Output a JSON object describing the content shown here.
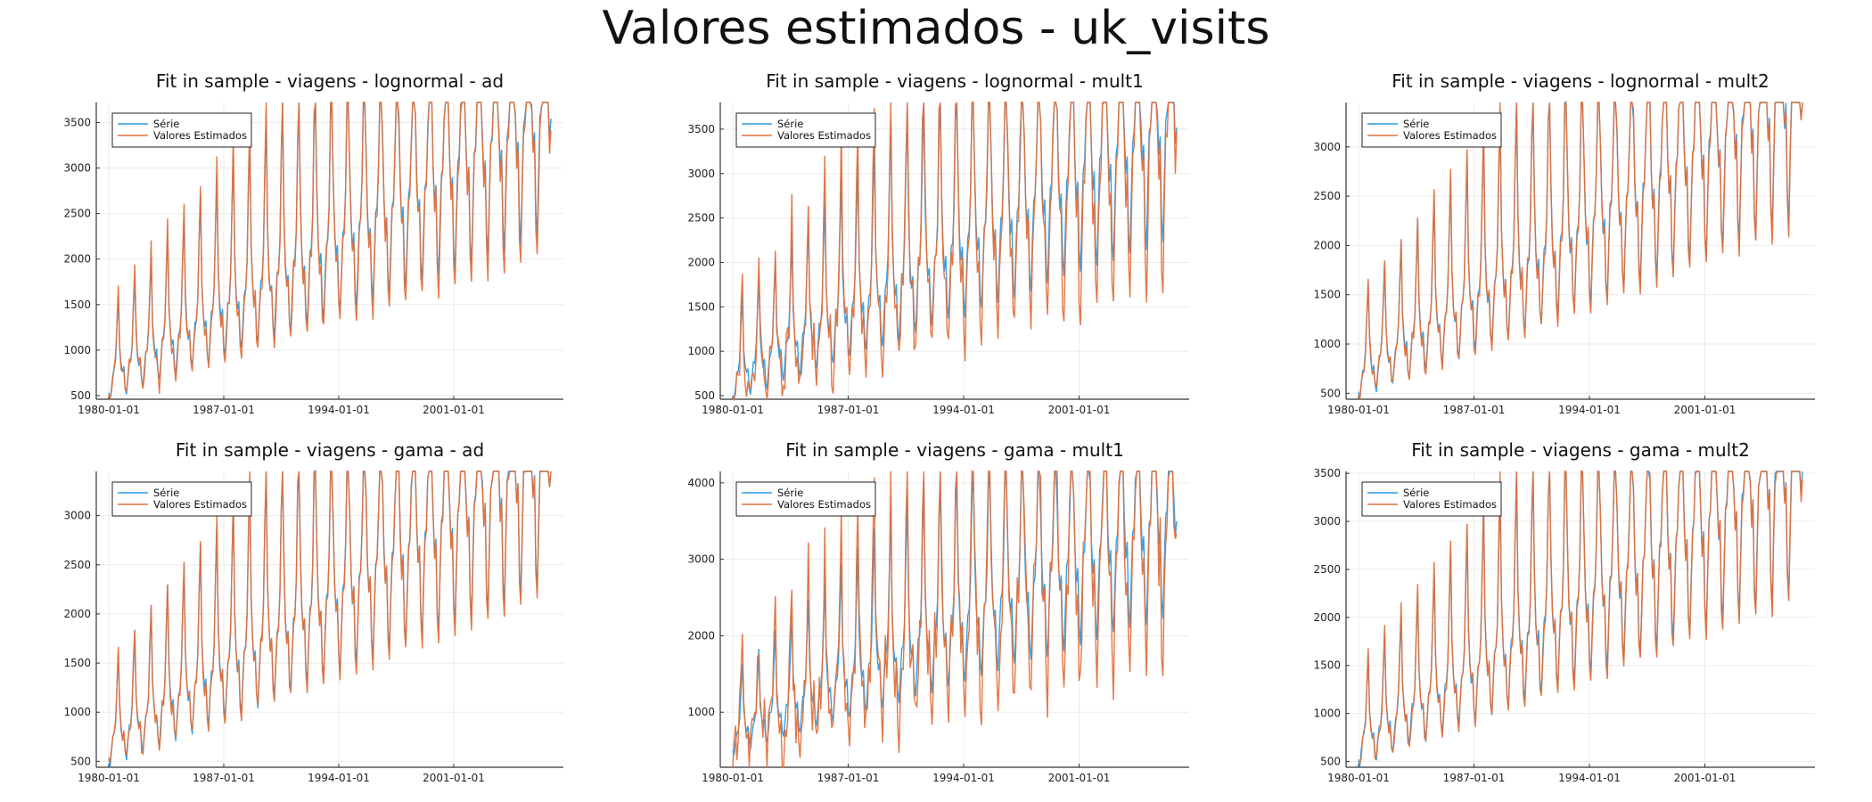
{
  "figure": {
    "title": "Valores estimados - uk_visits"
  },
  "colors": {
    "serie": "#2A9AE0",
    "estimados": "#E1703B",
    "grid": "#ebebeb",
    "axis": "#333333"
  },
  "legend": {
    "position": "top-left",
    "entries": [
      "Série",
      "Valores Estimados"
    ]
  },
  "chart_data": [
    {
      "type": "line",
      "title": "Fit in sample - viagens - lognormal - ad",
      "x_start": "1980-01",
      "x_end": "2006-12",
      "x_ticks": [
        "1980-01-01",
        "1987-01-01",
        "1994-01-01",
        "2001-01-01"
      ],
      "ylim": [
        460,
        3720
      ],
      "y_ticks": [
        500,
        1000,
        1500,
        2000,
        2500,
        3000,
        3500
      ],
      "series": [
        {
          "name": "Série",
          "key": "base",
          "trend": 19.8,
          "amp": 1.0,
          "noise": 30,
          "seed": 11
        },
        {
          "name": "Valores Estimados",
          "key": "fit",
          "trend": 19.8,
          "amp": 1.12,
          "noise": 80,
          "seed": 12
        }
      ],
      "grid": true
    },
    {
      "type": "line",
      "title": "Fit in sample - viagens - lognormal - mult1",
      "x_start": "1980-01",
      "x_end": "2006-12",
      "x_ticks": [
        "1980-01-01",
        "1987-01-01",
        "1994-01-01",
        "2001-01-01"
      ],
      "ylim": [
        460,
        3800
      ],
      "y_ticks": [
        500,
        1000,
        1500,
        2000,
        2500,
        3000,
        3500
      ],
      "series": [
        {
          "name": "Série",
          "key": "base",
          "trend": 19.8,
          "amp": 1.0,
          "noise": 30,
          "seed": 21
        },
        {
          "name": "Valores Estimados",
          "key": "fit",
          "trend": 19.8,
          "amp": 1.3,
          "noise": 200,
          "seed": 22
        }
      ],
      "grid": true
    },
    {
      "type": "line",
      "title": "Fit in sample - viagens - lognormal - mult2",
      "x_start": "1980-01",
      "x_end": "2006-12",
      "x_ticks": [
        "1980-01-01",
        "1987-01-01",
        "1994-01-01",
        "2001-01-01"
      ],
      "ylim": [
        440,
        3450
      ],
      "y_ticks": [
        500,
        1000,
        1500,
        2000,
        2500,
        3000
      ],
      "series": [
        {
          "name": "Série",
          "key": "base",
          "trend": 19.8,
          "amp": 1.0,
          "noise": 30,
          "seed": 31
        },
        {
          "name": "Valores Estimados",
          "key": "fit",
          "trend": 19.8,
          "amp": 1.05,
          "noise": 60,
          "seed": 32
        }
      ],
      "grid": true
    },
    {
      "type": "line",
      "title": "Fit in sample - viagens - gama - ad",
      "x_start": "1980-01",
      "x_end": "2006-12",
      "x_ticks": [
        "1980-01-01",
        "1987-01-01",
        "1994-01-01",
        "2001-01-01"
      ],
      "ylim": [
        440,
        3450
      ],
      "y_ticks": [
        500,
        1000,
        1500,
        2000,
        2500,
        3000
      ],
      "series": [
        {
          "name": "Série",
          "key": "base",
          "trend": 19.8,
          "amp": 1.0,
          "noise": 30,
          "seed": 41
        },
        {
          "name": "Valores Estimados",
          "key": "fit",
          "trend": 19.8,
          "amp": 1.05,
          "noise": 60,
          "seed": 42
        }
      ],
      "grid": true
    },
    {
      "type": "line",
      "title": "Fit in sample - viagens - gama - mult1",
      "x_start": "1980-01",
      "x_end": "2006-12",
      "x_ticks": [
        "1980-01-01",
        "1987-01-01",
        "1994-01-01",
        "2001-01-01"
      ],
      "ylim": [
        280,
        4150
      ],
      "y_ticks": [
        1000,
        2000,
        3000,
        4000
      ],
      "series": [
        {
          "name": "Série",
          "key": "base",
          "trend": 19.8,
          "amp": 1.0,
          "noise": 30,
          "seed": 51
        },
        {
          "name": "Valores Estimados",
          "key": "fit",
          "trend": 19.8,
          "amp": 1.35,
          "noise": 360,
          "seed": 52
        }
      ],
      "grid": true
    },
    {
      "type": "line",
      "title": "Fit in sample - viagens - gama - mult2",
      "x_start": "1980-01",
      "x_end": "2006-12",
      "x_ticks": [
        "1980-01-01",
        "1987-01-01",
        "1994-01-01",
        "2001-01-01"
      ],
      "ylim": [
        440,
        3520
      ],
      "y_ticks": [
        500,
        1000,
        1500,
        2000,
        2500,
        3000,
        3500
      ],
      "series": [
        {
          "name": "Série",
          "key": "base",
          "trend": 19.8,
          "amp": 1.0,
          "noise": 30,
          "seed": 61
        },
        {
          "name": "Valores Estimados",
          "key": "fit",
          "trend": 19.8,
          "amp": 1.06,
          "noise": 60,
          "seed": 62
        }
      ],
      "grid": true
    }
  ]
}
